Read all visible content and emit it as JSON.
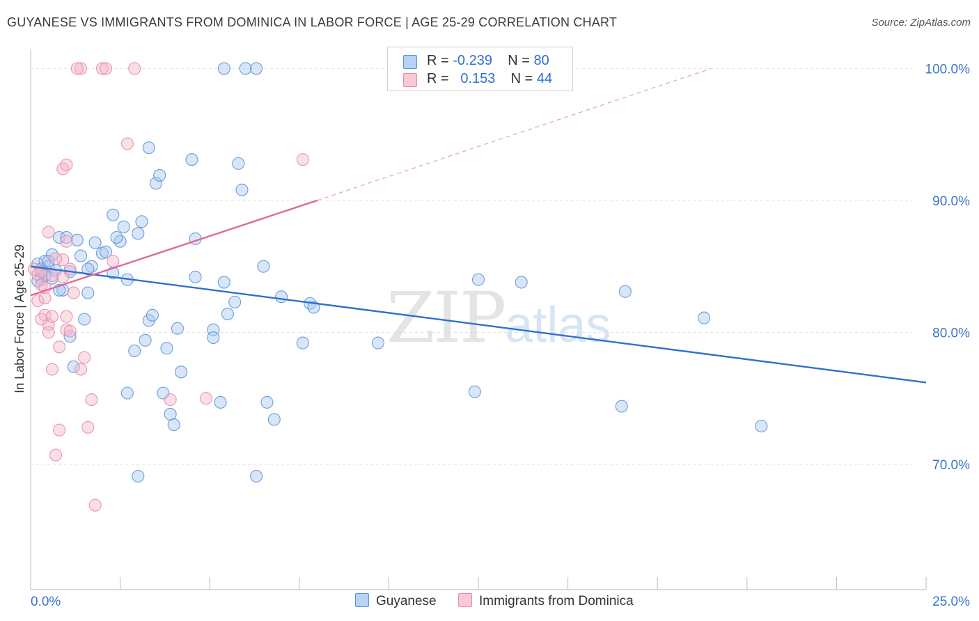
{
  "title": "GUYANESE VS IMMIGRANTS FROM DOMINICA IN LABOR FORCE | AGE 25-29 CORRELATION CHART",
  "source": "Source: ZipAtlas.com",
  "watermark": {
    "zip": "ZIP",
    "atlas": "atlas"
  },
  "legend": {
    "rows": [
      {
        "r_label": "R =",
        "r_value": "-0.239",
        "n_label": "N =",
        "n_value": "80",
        "color": "#a8c8f0"
      },
      {
        "r_label": "R =",
        "r_value": "0.153",
        "n_label": "N =",
        "n_value": "44",
        "color": "#f5b8cb"
      }
    ]
  },
  "bottom_legend": [
    {
      "label": "Guyanese",
      "color": "#a8c8f0"
    },
    {
      "label": "Immigrants from Dominica",
      "color": "#f5b8cb"
    }
  ],
  "chart_data": {
    "type": "scatter",
    "ylabel": "In Labor Force | Age 25-29",
    "xlabel": "",
    "xlim": [
      0,
      25
    ],
    "ylim": [
      60.5,
      101.5
    ],
    "x_tick_labels": {
      "min": "0.0%",
      "max": "25.0%"
    },
    "y_ticks": [
      {
        "value": 100,
        "label": "100.0%"
      },
      {
        "value": 90,
        "label": "90.0%"
      },
      {
        "value": 80,
        "label": "80.0%"
      },
      {
        "value": 70,
        "label": "70.0%"
      }
    ],
    "grid": true,
    "series": [
      {
        "name": "Guyanese",
        "color": "#5b93db",
        "fill": "#a8c8f0",
        "trend": {
          "x": [
            0,
            25
          ],
          "y": [
            85.0,
            76.2
          ],
          "dashed_extension": false
        },
        "points": [
          [
            0.2,
            85.2
          ],
          [
            0.3,
            84.8
          ],
          [
            0.4,
            85.4
          ],
          [
            0.5,
            85.0
          ],
          [
            0.3,
            84.0
          ],
          [
            0.6,
            85.9
          ],
          [
            0.8,
            87.2
          ],
          [
            1.0,
            87.2
          ],
          [
            1.3,
            87.0
          ],
          [
            1.4,
            85.8
          ],
          [
            0.9,
            83.2
          ],
          [
            1.6,
            83.0
          ],
          [
            1.7,
            85.0
          ],
          [
            1.8,
            86.8
          ],
          [
            2.0,
            86.0
          ],
          [
            2.1,
            86.1
          ],
          [
            2.3,
            84.5
          ],
          [
            2.3,
            88.9
          ],
          [
            2.5,
            86.9
          ],
          [
            2.6,
            88.0
          ],
          [
            2.7,
            84.0
          ],
          [
            3.0,
            87.5
          ],
          [
            3.1,
            88.4
          ],
          [
            2.9,
            78.6
          ],
          [
            3.2,
            79.4
          ],
          [
            3.3,
            80.9
          ],
          [
            3.4,
            81.3
          ],
          [
            3.3,
            94.0
          ],
          [
            3.5,
            91.3
          ],
          [
            3.6,
            91.9
          ],
          [
            4.5,
            93.1
          ],
          [
            4.6,
            87.1
          ],
          [
            4.6,
            84.2
          ],
          [
            5.1,
            80.2
          ],
          [
            5.1,
            79.6
          ],
          [
            5.4,
            83.8
          ],
          [
            5.5,
            81.4
          ],
          [
            5.3,
            74.7
          ],
          [
            5.7,
            82.3
          ],
          [
            5.8,
            92.8
          ],
          [
            5.9,
            90.8
          ],
          [
            5.4,
            100.0
          ],
          [
            6.0,
            100.0
          ],
          [
            6.3,
            100.0
          ],
          [
            6.5,
            85.0
          ],
          [
            6.6,
            74.7
          ],
          [
            6.8,
            73.4
          ],
          [
            7.0,
            82.7
          ],
          [
            7.8,
            82.2
          ],
          [
            7.9,
            81.9
          ],
          [
            7.6,
            79.2
          ],
          [
            9.7,
            79.2
          ],
          [
            12.4,
            75.5
          ],
          [
            12.5,
            84.0
          ],
          [
            13.7,
            83.8
          ],
          [
            16.5,
            74.4
          ],
          [
            16.6,
            83.1
          ],
          [
            18.8,
            81.1
          ],
          [
            20.4,
            72.9
          ],
          [
            1.1,
            79.7
          ],
          [
            1.5,
            81.0
          ],
          [
            2.7,
            75.4
          ],
          [
            3.0,
            69.1
          ],
          [
            3.7,
            75.4
          ],
          [
            3.9,
            73.8
          ],
          [
            4.0,
            73.0
          ],
          [
            4.2,
            77.0
          ],
          [
            3.8,
            78.8
          ],
          [
            6.3,
            69.1
          ],
          [
            1.2,
            77.4
          ],
          [
            0.6,
            84.1
          ],
          [
            1.1,
            84.6
          ],
          [
            1.6,
            84.8
          ],
          [
            0.8,
            83.2
          ],
          [
            2.4,
            87.2
          ],
          [
            4.1,
            80.3
          ],
          [
            0.4,
            84.3
          ],
          [
            0.5,
            85.4
          ],
          [
            0.7,
            84.7
          ],
          [
            0.2,
            83.9
          ]
        ]
      },
      {
        "name": "Immigrants from Dominica",
        "color": "#e88aa8",
        "fill": "#f5b8cb",
        "trend": {
          "x": [
            0,
            8
          ],
          "y": [
            82.8,
            90.0
          ],
          "dashed_to": [
            19,
            100
          ]
        },
        "points": [
          [
            0.1,
            84.8
          ],
          [
            0.2,
            84.4
          ],
          [
            0.3,
            83.6
          ],
          [
            0.2,
            82.4
          ],
          [
            0.4,
            82.6
          ],
          [
            0.4,
            81.3
          ],
          [
            0.5,
            80.6
          ],
          [
            0.6,
            81.2
          ],
          [
            0.5,
            80.0
          ],
          [
            0.6,
            77.2
          ],
          [
            0.8,
            78.9
          ],
          [
            0.8,
            72.6
          ],
          [
            0.7,
            70.7
          ],
          [
            0.9,
            85.5
          ],
          [
            1.0,
            86.9
          ],
          [
            1.1,
            84.8
          ],
          [
            1.0,
            81.2
          ],
          [
            1.0,
            80.2
          ],
          [
            1.2,
            83.0
          ],
          [
            1.4,
            77.2
          ],
          [
            1.5,
            78.1
          ],
          [
            1.6,
            72.8
          ],
          [
            1.7,
            74.9
          ],
          [
            1.8,
            66.9
          ],
          [
            2.3,
            85.4
          ],
          [
            2.7,
            94.3
          ],
          [
            1.4,
            100.0
          ],
          [
            1.3,
            100.0
          ],
          [
            2.0,
            100.0
          ],
          [
            2.1,
            100.0
          ],
          [
            2.9,
            100.0
          ],
          [
            3.9,
            74.9
          ],
          [
            4.9,
            75.0
          ],
          [
            7.6,
            93.1
          ],
          [
            0.9,
            92.4
          ],
          [
            1.0,
            92.7
          ],
          [
            0.5,
            87.6
          ],
          [
            0.3,
            84.6
          ],
          [
            0.4,
            83.4
          ],
          [
            0.6,
            84.3
          ],
          [
            0.7,
            85.6
          ],
          [
            0.9,
            84.2
          ],
          [
            0.3,
            81.0
          ],
          [
            1.1,
            80.1
          ]
        ]
      }
    ]
  }
}
